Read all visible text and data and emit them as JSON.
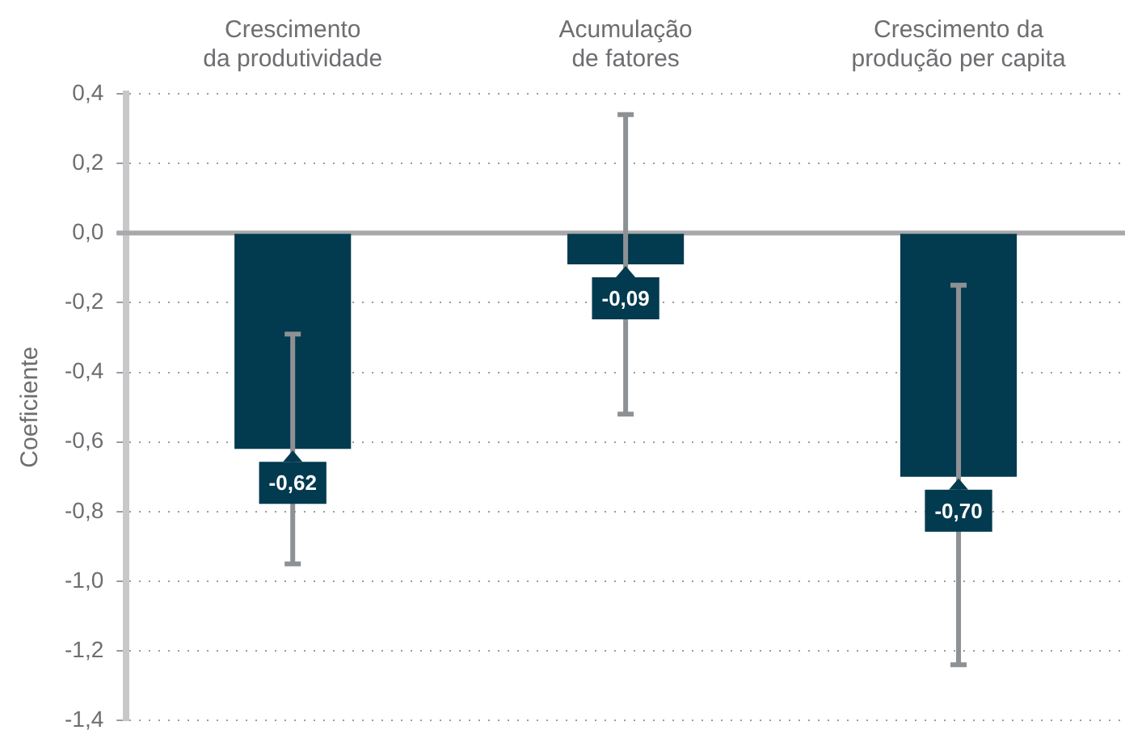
{
  "chart_data": {
    "type": "bar",
    "ylabel": "Coeficiente",
    "categories": [
      "Crescimento da produtividade",
      "Acumulação de fatores",
      "Crescimento da produção per capita"
    ],
    "values": [
      -0.62,
      -0.09,
      -0.7
    ],
    "errors": [
      [
        -0.95,
        -0.29
      ],
      [
        -0.52,
        0.34
      ],
      [
        -1.24,
        -0.15
      ]
    ],
    "value_labels": [
      "-0,62",
      "-0,09",
      "-0,70"
    ],
    "color": "#023a4f",
    "ylim": [
      -1.4,
      0.4
    ],
    "yticks": [
      {
        "value": 0.4,
        "label": "0,4"
      },
      {
        "value": 0.2,
        "label": "0,2"
      },
      {
        "value": 0,
        "label": "0,0"
      },
      {
        "value": -0.2,
        "label": "-0,2"
      },
      {
        "value": -0.4,
        "label": "-0,4"
      },
      {
        "value": -0.6,
        "label": "-0,6"
      },
      {
        "value": -0.8,
        "label": "-0,8"
      },
      {
        "value": -1,
        "label": "-1,0"
      },
      {
        "value": -1.2,
        "label": "-1,2"
      },
      {
        "value": -1.4,
        "label": "-1,4"
      }
    ],
    "ref_lines": [
      {
        "axis": "y",
        "value": 0,
        "color": "#a7a9ab"
      }
    ],
    "grid": "y",
    "legend": false
  }
}
